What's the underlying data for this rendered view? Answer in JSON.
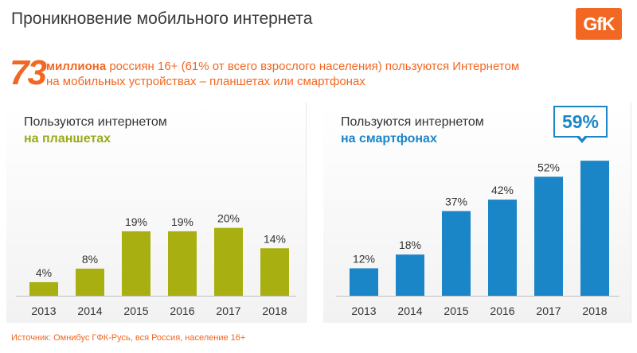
{
  "page": {
    "title": "Проникновение мобильного интернета",
    "logo_text": "GfK",
    "headline_number": "73",
    "headline_strong": "миллиона",
    "headline_line1": " россиян 16+ (61% от всего взрослого населения) пользуются Интернетом",
    "headline_line2": "на мобильных устройствах – планшетах или смартфонах",
    "source": "Источник: Омнибус ГФК-Русь, вся Россия, население 16+",
    "accent_color": "#f26722"
  },
  "chart_data": [
    {
      "type": "bar",
      "title_line1": "Пользуются интернетом",
      "title_line2": "на планшетах",
      "categories": [
        "2013",
        "2014",
        "2015",
        "2016",
        "2017",
        "2018"
      ],
      "values": [
        4,
        8,
        19,
        19,
        20,
        14
      ],
      "value_labels": [
        "4%",
        "8%",
        "19%",
        "19%",
        "20%",
        "14%"
      ],
      "ylim": [
        0,
        30
      ],
      "color": "#a7b010"
    },
    {
      "type": "bar",
      "title_line1": "Пользуются интернетом",
      "title_line2": "на смартфонах",
      "categories": [
        "2013",
        "2014",
        "2015",
        "2016",
        "2017",
        "2018"
      ],
      "values": [
        12,
        18,
        37,
        42,
        52,
        59
      ],
      "value_labels": [
        "12%",
        "18%",
        "37%",
        "42%",
        "52%",
        ""
      ],
      "highlight_label": "59%",
      "ylim": [
        0,
        66
      ],
      "color": "#1b86c7"
    }
  ]
}
